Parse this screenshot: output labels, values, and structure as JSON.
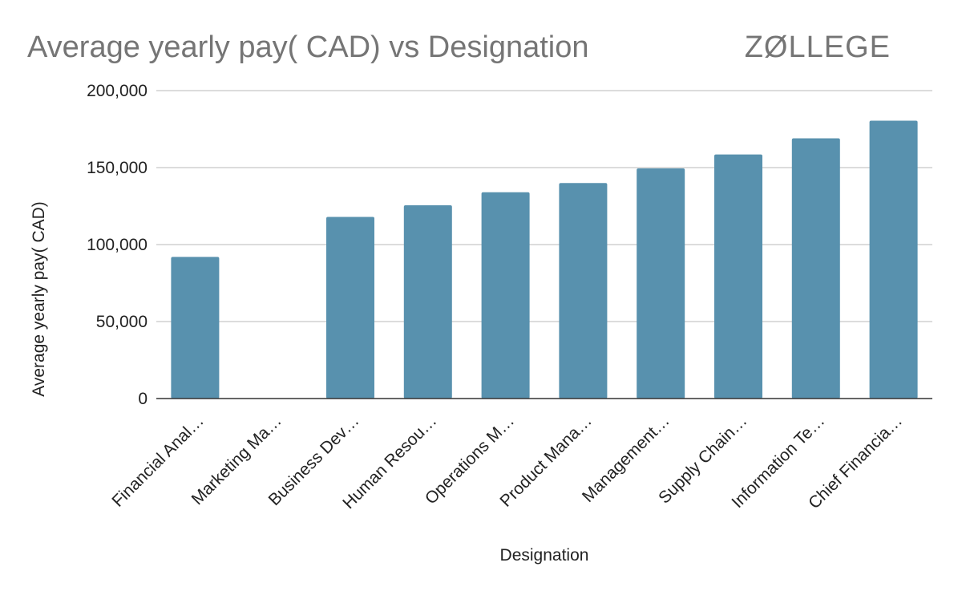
{
  "brand": "ZØLLEGE",
  "colors": {
    "bar": "#5891ae",
    "grid": "#c8c8c8",
    "baseline": "#333333",
    "title": "#757575"
  },
  "chart_data": {
    "type": "bar",
    "title": "Average yearly pay( CAD) vs Designation",
    "xlabel": "Designation",
    "ylabel": "Average yearly pay( CAD)",
    "ylim": [
      0,
      200000
    ],
    "yticks": [
      0,
      50000,
      100000,
      150000,
      200000
    ],
    "ytick_labels": [
      "0",
      "50,000",
      "100,000",
      "150,000",
      "200,000"
    ],
    "grid": true,
    "legend": "none",
    "categories": [
      "Financial Anal…",
      "Marketing Ma…",
      "Business Dev…",
      "Human Resou…",
      "Operations M…",
      "Product Mana…",
      "Management…",
      "Supply Chain…",
      "Information Te…",
      "Chief Financia…"
    ],
    "values": [
      92000,
      0,
      118000,
      125500,
      134000,
      140000,
      149500,
      158500,
      169000,
      180500
    ]
  }
}
